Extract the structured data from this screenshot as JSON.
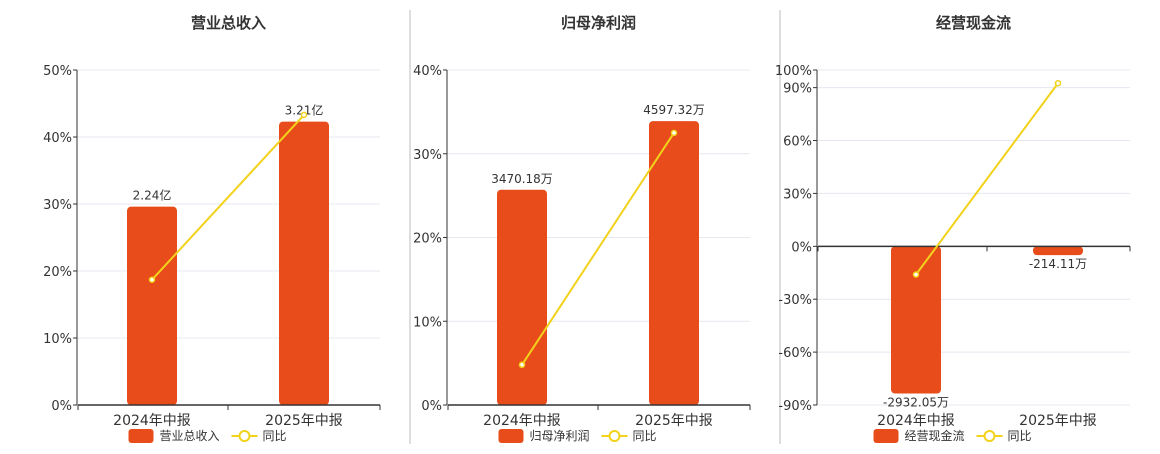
{
  "colors": {
    "bar": "#e84c1a",
    "line": "#f2d21b",
    "axis": "#333333",
    "grid": "#e4e8ef",
    "divider": "#bdbdbd",
    "text": "#333333"
  },
  "chart_data": [
    {
      "type": "bar",
      "title": "营业总收入",
      "categories": [
        "2024年中报",
        "2025年中报"
      ],
      "ylim": [
        0,
        50
      ],
      "y_ticks": [
        "0%",
        "10%",
        "20%",
        "30%",
        "40%",
        "50%"
      ],
      "y_tick_values": [
        0,
        10,
        20,
        30,
        40,
        50
      ],
      "series": [
        {
          "name": "营业总收入",
          "kind": "bar",
          "values": [
            29.6,
            42.3
          ],
          "labels": [
            "2.24亿",
            "3.21亿"
          ]
        },
        {
          "name": "同比",
          "kind": "line",
          "values": [
            18.7,
            43.3
          ]
        }
      ],
      "legend_position": "bottom",
      "grid": true
    },
    {
      "type": "bar",
      "title": "归母净利润",
      "categories": [
        "2024年中报",
        "2025年中报"
      ],
      "ylim": [
        0,
        40
      ],
      "y_ticks": [
        "0%",
        "10%",
        "20%",
        "30%",
        "40%"
      ],
      "y_tick_values": [
        0,
        10,
        20,
        30,
        40
      ],
      "series": [
        {
          "name": "归母净利润",
          "kind": "bar",
          "values": [
            25.7,
            33.9
          ],
          "labels": [
            "3470.18万",
            "4597.32万"
          ]
        },
        {
          "name": "同比",
          "kind": "line",
          "values": [
            4.8,
            32.5
          ]
        }
      ],
      "legend_position": "bottom",
      "grid": true
    },
    {
      "type": "bar",
      "title": "经营现金流",
      "categories": [
        "2024年中报",
        "2025年中报"
      ],
      "ylim": [
        -90,
        100
      ],
      "y_ticks": [
        "-90%",
        "-60%",
        "-30%",
        "0%",
        "30%",
        "60%",
        "90%",
        "100%"
      ],
      "y_tick_values": [
        -90,
        -60,
        -30,
        0,
        30,
        60,
        90,
        100
      ],
      "series": [
        {
          "name": "经营现金流",
          "kind": "bar",
          "values": [
            -83.5,
            -5
          ],
          "labels": [
            "-2932.05万",
            "-214.11万"
          ]
        },
        {
          "name": "同比",
          "kind": "line",
          "values": [
            -16,
            92.5
          ]
        }
      ],
      "legend_position": "bottom",
      "grid": true
    }
  ]
}
